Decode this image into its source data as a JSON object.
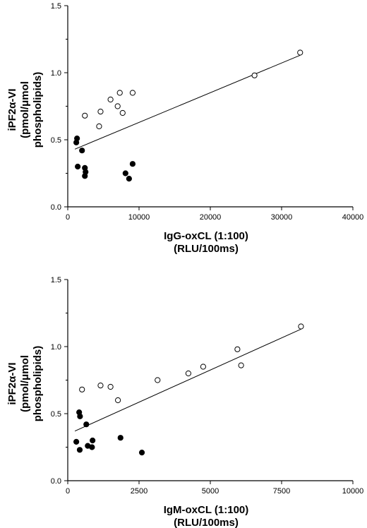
{
  "chart_data": [
    {
      "type": "scatter",
      "title": "",
      "xlabel_lines": [
        "IgG-oxCL (1:100)",
        "(RLU/100ms)"
      ],
      "ylabel_lines": [
        "iPF2α-VI",
        "(pmol/μmol",
        "phospholipids)"
      ],
      "xlim": [
        0,
        40000
      ],
      "ylim": [
        0,
        1.5
      ],
      "xticks": [
        "0",
        "10000",
        "20000",
        "30000",
        "40000"
      ],
      "yticks": [
        "0.0",
        "0.5",
        "1.0",
        "1.5"
      ],
      "grid": false,
      "series": [
        {
          "marker": "open-circle",
          "points": [
            [
              2400,
              0.68
            ],
            [
              4400,
              0.6
            ],
            [
              4600,
              0.71
            ],
            [
              6000,
              0.8
            ],
            [
              7000,
              0.75
            ],
            [
              7300,
              0.85
            ],
            [
              7700,
              0.7
            ],
            [
              9100,
              0.85
            ],
            [
              26200,
              0.98
            ],
            [
              32600,
              1.15
            ]
          ]
        },
        {
          "marker": "filled-circle",
          "points": [
            [
              1200,
              0.48
            ],
            [
              1300,
              0.51
            ],
            [
              1400,
              0.3
            ],
            [
              2000,
              0.42
            ],
            [
              2400,
              0.29
            ],
            [
              2500,
              0.26
            ],
            [
              2400,
              0.23
            ],
            [
              8100,
              0.25
            ],
            [
              8600,
              0.21
            ],
            [
              9100,
              0.32
            ]
          ]
        }
      ],
      "fit_line": {
        "x": [
          1000,
          32600
        ],
        "y": [
          0.43,
          1.13
        ]
      }
    },
    {
      "type": "scatter",
      "title": "",
      "xlabel_lines": [
        "IgM-oxCL (1:100)",
        "(RLU/100ms)"
      ],
      "ylabel_lines": [
        "iPF2α-VI",
        "(pmol/μmol",
        "phospholipids)"
      ],
      "xlim": [
        0,
        10000
      ],
      "ylim": [
        0,
        1.5
      ],
      "xticks": [
        "0",
        "2500",
        "5000",
        "7500",
        "10000"
      ],
      "yticks": [
        "0.0",
        "0.5",
        "1.0",
        "1.5"
      ],
      "grid": false,
      "series": [
        {
          "marker": "open-circle",
          "points": [
            [
              500,
              0.68
            ],
            [
              1150,
              0.71
            ],
            [
              1500,
              0.7
            ],
            [
              1760,
              0.6
            ],
            [
              3150,
              0.75
            ],
            [
              4230,
              0.8
            ],
            [
              4750,
              0.85
            ],
            [
              5950,
              0.98
            ],
            [
              6080,
              0.86
            ],
            [
              8180,
              1.15
            ]
          ]
        },
        {
          "marker": "filled-circle",
          "points": [
            [
              300,
              0.29
            ],
            [
              420,
              0.23
            ],
            [
              400,
              0.51
            ],
            [
              430,
              0.48
            ],
            [
              650,
              0.42
            ],
            [
              700,
              0.26
            ],
            [
              850,
              0.25
            ],
            [
              870,
              0.3
            ],
            [
              1850,
              0.32
            ],
            [
              2600,
              0.21
            ]
          ]
        }
      ],
      "fit_line": {
        "x": [
          250,
          8180
        ],
        "y": [
          0.37,
          1.13
        ]
      }
    }
  ]
}
